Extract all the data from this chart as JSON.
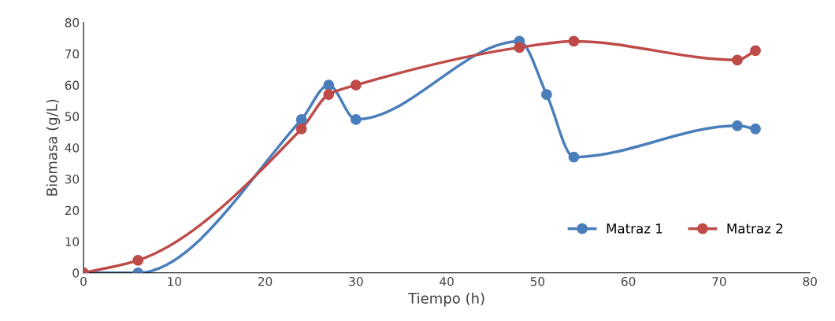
{
  "chart_data": {
    "type": "line",
    "xlabel": "Tiempo (h)",
    "ylabel": "Biomasa (g/L)",
    "xlim": [
      0,
      80
    ],
    "xticks": [
      0,
      10,
      20,
      30,
      40,
      50,
      60,
      70,
      80
    ],
    "ylim": [
      0,
      80
    ],
    "yticks": [
      0,
      10,
      20,
      30,
      40,
      50,
      60,
      70,
      80
    ],
    "grid": false,
    "legend": "bottom right",
    "marker": "circle",
    "line_style": "solid",
    "series": [
      {
        "name": "Matraz 1",
        "color": "#4a7ebb",
        "x": [
          0,
          6,
          24,
          27,
          30,
          48,
          51,
          54,
          72,
          74
        ],
        "values": [
          0,
          0,
          49,
          60,
          49,
          74,
          57,
          37,
          47,
          46
        ]
      },
      {
        "name": "Matraz 2",
        "color": "#be4b48",
        "x": [
          0,
          6,
          24,
          27,
          30,
          48,
          54,
          72,
          74
        ],
        "values": [
          0,
          4,
          46,
          57,
          60,
          72,
          74,
          68,
          71
        ]
      }
    ]
  }
}
